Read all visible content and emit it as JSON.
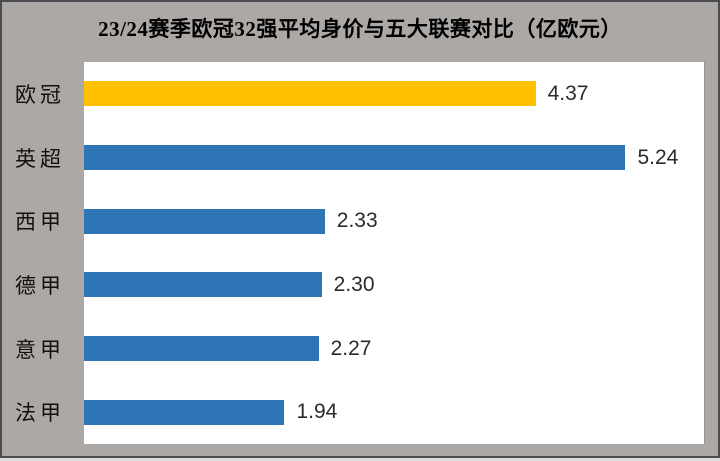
{
  "frame": {
    "background": "#ACA8A5",
    "border_color": "#4B4D50",
    "plot_background": "#FFFFFF"
  },
  "chart_data": {
    "type": "bar",
    "orientation": "horizontal",
    "title": "23/24赛季欧冠32强平均身价与五大联赛对比（亿欧元）",
    "categories": [
      "欧冠",
      "英超",
      "西甲",
      "德甲",
      "意甲",
      "法甲"
    ],
    "values": [
      4.37,
      5.24,
      2.33,
      2.3,
      2.27,
      1.94
    ],
    "value_labels": [
      "4.37",
      "5.24",
      "2.33",
      "2.30",
      "2.27",
      "1.94"
    ],
    "xlim": [
      0,
      6
    ],
    "grid": false,
    "legend": "none",
    "colors": {
      "highlight_bar": "#FFC000",
      "default_bar": "#2E75B6"
    },
    "highlight_index": 0
  }
}
